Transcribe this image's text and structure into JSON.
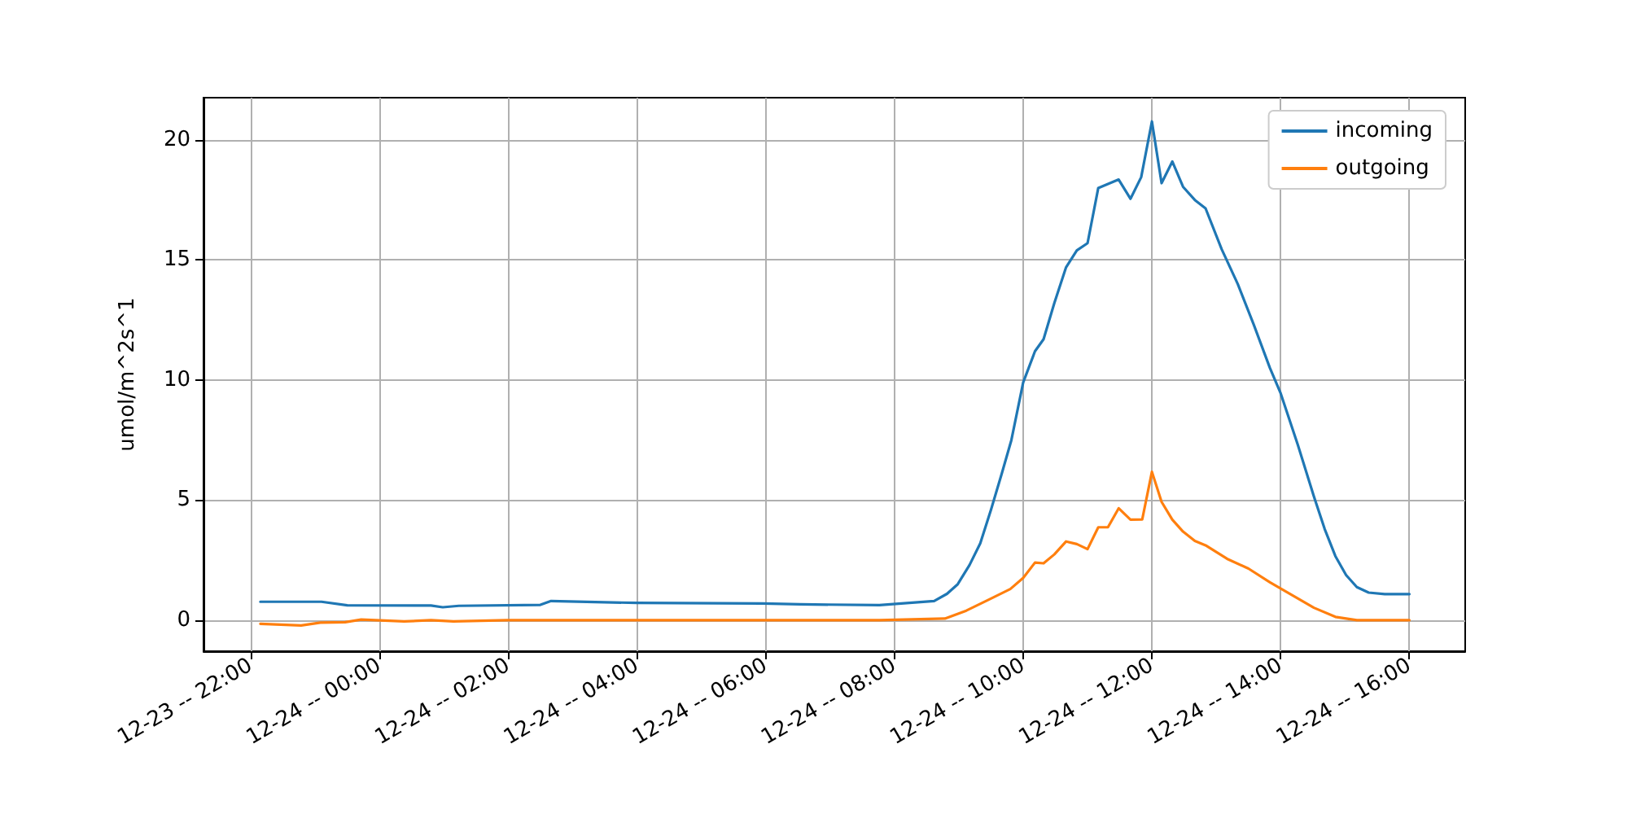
{
  "chart_data": {
    "type": "line",
    "ylabel": "umol/m^2s^1",
    "xlim": [
      "--12-23T21:16",
      "--12-24T16:52"
    ],
    "ylim": [
      -1.29,
      21.76
    ],
    "xticks": [
      {
        "value": "--12-23T22:00",
        "label": "12-23 -- 22:00"
      },
      {
        "value": "--12-24T00:00",
        "label": "12-24 -- 00:00"
      },
      {
        "value": "--12-24T02:00",
        "label": "12-24 -- 02:00"
      },
      {
        "value": "--12-24T04:00",
        "label": "12-24 -- 04:00"
      },
      {
        "value": "--12-24T06:00",
        "label": "12-24 -- 06:00"
      },
      {
        "value": "--12-24T08:00",
        "label": "12-24 -- 08:00"
      },
      {
        "value": "--12-24T10:00",
        "label": "12-24 -- 10:00"
      },
      {
        "value": "--12-24T12:00",
        "label": "12-24 -- 12:00"
      },
      {
        "value": "--12-24T14:00",
        "label": "12-24 -- 14:00"
      },
      {
        "value": "--12-24T16:00",
        "label": "12-24 -- 16:00"
      }
    ],
    "yticks": [
      0,
      5,
      10,
      15,
      20
    ],
    "grid": true,
    "legend": "top right",
    "series": [
      {
        "name": "incoming",
        "color": "#1f77b4",
        "x": [
          "--12-23T22:09",
          "--12-23T23:06",
          "--12-23T23:30",
          "--12-24T00:48",
          "--12-24T00:59",
          "--12-24T01:14",
          "--12-24T02:30",
          "--12-24T02:40",
          "--12-24T04:00",
          "--12-24T05:57",
          "--12-24T06:32",
          "--12-24T07:46",
          "--12-24T08:37",
          "--12-24T08:49",
          "--12-24T08:59",
          "--12-24T09:10",
          "--12-24T09:20",
          "--12-24T09:30",
          "--12-24T09:40",
          "--12-24T09:49",
          "--12-24T10:00",
          "--12-24T10:11",
          "--12-24T10:19",
          "--12-24T10:29",
          "--12-24T10:40",
          "--12-24T10:50",
          "--12-24T11:00",
          "--12-24T11:10",
          "--12-24T11:29",
          "--12-24T11:40",
          "--12-24T11:50",
          "--12-24T12:00",
          "--12-24T12:09",
          "--12-24T12:19",
          "--12-24T12:29",
          "--12-24T12:40",
          "--12-24T12:50",
          "--12-24T13:05",
          "--12-24T13:20",
          "--12-24T13:35",
          "--12-24T13:50",
          "--12-24T14:00",
          "--12-24T14:16",
          "--12-24T14:31",
          "--12-24T14:41",
          "--12-24T14:51",
          "--12-24T15:01",
          "--12-24T15:11",
          "--12-24T15:22",
          "--12-24T15:37",
          "--12-24T16:00"
        ],
        "values": [
          0.77,
          0.77,
          0.62,
          0.61,
          0.54,
          0.6,
          0.64,
          0.8,
          0.72,
          0.7,
          0.66,
          0.63,
          0.8,
          1.1,
          1.5,
          2.3,
          3.2,
          4.6,
          6.1,
          7.5,
          9.9,
          11.2,
          11.7,
          13.2,
          14.7,
          15.4,
          15.7,
          18.0,
          18.35,
          17.55,
          18.45,
          20.77,
          18.2,
          19.1,
          18.05,
          17.5,
          17.15,
          15.45,
          14.0,
          12.3,
          10.5,
          9.45,
          7.3,
          5.15,
          3.8,
          2.67,
          1.88,
          1.38,
          1.15,
          1.09,
          1.09
        ]
      },
      {
        "name": "outgoing",
        "color": "#ff7f0e",
        "x": [
          "--12-23T22:09",
          "--12-23T22:47",
          "--12-23T23:05",
          "--12-23T23:28",
          "--12-23T23:43",
          "--12-24T00:23",
          "--12-24T00:48",
          "--12-24T01:09",
          "--12-24T01:59",
          "--12-24T07:46",
          "--12-24T08:47",
          "--12-24T09:07",
          "--12-24T09:28",
          "--12-24T09:48",
          "--12-24T10:00",
          "--12-24T10:11",
          "--12-24T10:19",
          "--12-24T10:29",
          "--12-24T10:40",
          "--12-24T10:50",
          "--12-24T11:00",
          "--12-24T11:10",
          "--12-24T11:19",
          "--12-24T11:29",
          "--12-24T11:40",
          "--12-24T11:51",
          "--12-24T12:00",
          "--12-24T12:09",
          "--12-24T12:19",
          "--12-24T12:29",
          "--12-24T12:40",
          "--12-24T12:50",
          "--12-24T13:10",
          "--12-24T13:30",
          "--12-24T13:50",
          "--12-24T14:11",
          "--12-24T14:31",
          "--12-24T14:51",
          "--12-24T15:11",
          "--12-24T16:00"
        ],
        "values": [
          -0.15,
          -0.22,
          -0.1,
          -0.08,
          0.03,
          -0.05,
          0,
          -0.05,
          0,
          0,
          0.07,
          0.4,
          0.86,
          1.3,
          1.76,
          2.4,
          2.37,
          2.74,
          3.28,
          3.17,
          2.96,
          3.87,
          3.87,
          4.66,
          4.19,
          4.2,
          6.18,
          4.93,
          4.19,
          3.69,
          3.3,
          3.12,
          2.56,
          2.15,
          1.58,
          1.04,
          0.52,
          0.14,
          0,
          0
        ]
      }
    ]
  }
}
